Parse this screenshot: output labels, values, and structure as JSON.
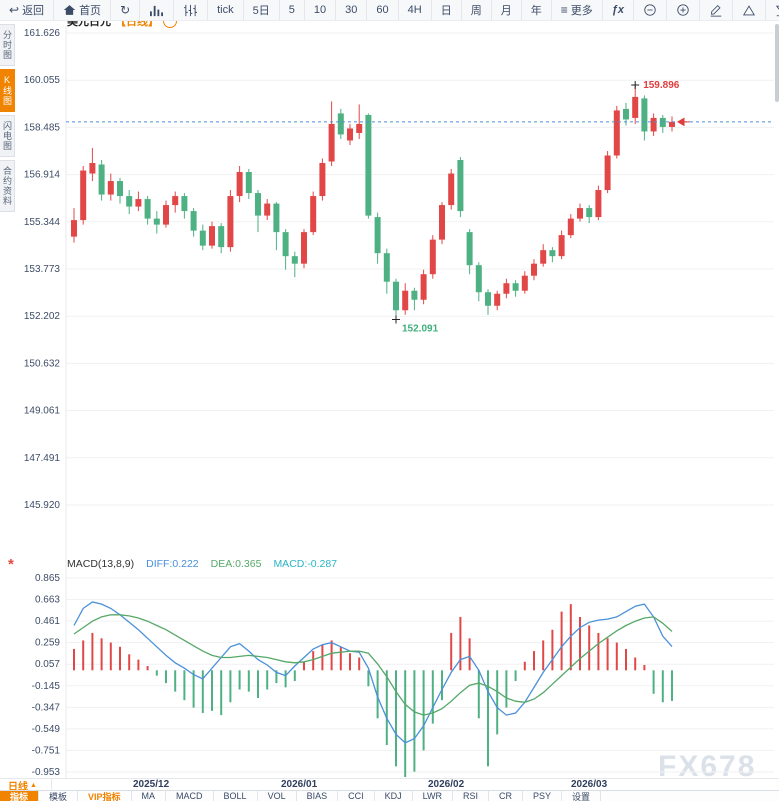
{
  "window": {
    "watermark": "FX678"
  },
  "colors": {
    "up": "#e14747",
    "down": "#4eb183",
    "accent_orange": "#f08300",
    "diff_line": "#4a90d9",
    "dea_line": "#55a868",
    "macd_value": "#29b6c5",
    "dashed_price_line": "#4f90d8",
    "grid": "#f0f1f3",
    "axis_text": "#3d4c66",
    "high_label": "#e03c3c",
    "low_label": "#3faf7c"
  },
  "toolbar": {
    "items": [
      {
        "name": "back",
        "label": "返回",
        "glyph": "↩"
      },
      {
        "name": "home",
        "label": "首页",
        "icon": "house"
      },
      {
        "name": "refresh",
        "label": "",
        "glyph": "↻"
      },
      {
        "name": "chart-style",
        "label": "",
        "icon": "bars"
      },
      {
        "name": "indicator-style",
        "label": "",
        "icon": "candles"
      },
      {
        "name": "tick",
        "label": "tick"
      },
      {
        "name": "period-5d",
        "label": "5日"
      },
      {
        "name": "period-5",
        "label": "5"
      },
      {
        "name": "period-10",
        "label": "10"
      },
      {
        "name": "period-30",
        "label": "30"
      },
      {
        "name": "period-60",
        "label": "60"
      },
      {
        "name": "period-4h",
        "label": "4H"
      },
      {
        "name": "period-day",
        "label": "日"
      },
      {
        "name": "period-week",
        "label": "周"
      },
      {
        "name": "period-month",
        "label": "月"
      },
      {
        "name": "period-year",
        "label": "年"
      },
      {
        "name": "more",
        "label": "更多",
        "glyph": "≡"
      },
      {
        "name": "fx",
        "label": "ƒx"
      },
      {
        "name": "zoom-out",
        "label": "",
        "icon": "minus-circle"
      },
      {
        "name": "zoom-in",
        "label": "",
        "icon": "plus-circle"
      },
      {
        "name": "draw",
        "label": "",
        "icon": "pencil"
      },
      {
        "name": "overlay-up",
        "label": "",
        "icon": "triangle-up"
      },
      {
        "name": "overlay-down",
        "label": "",
        "icon": "triangle-down"
      }
    ]
  },
  "sidebar": {
    "items": [
      {
        "label": "分时图",
        "active": false
      },
      {
        "label": "K线图",
        "active": true
      },
      {
        "label": "闪电图",
        "active": false
      },
      {
        "label": "合约资料",
        "active": false
      }
    ]
  },
  "chart_header": {
    "symbol": "美元日元",
    "period_tag": "【日线】",
    "collapse_glyph": "−"
  },
  "macd_header": {
    "name": "MACD(13,8,9)",
    "diff_label": "DIFF:0.222",
    "dea_label": "DEA:0.365",
    "macd_label": "MACD:-0.287",
    "star_glyph": "*"
  },
  "bottom": {
    "period_label": "日线",
    "period_arrow": "▲",
    "tabs": [
      {
        "label": "指标",
        "active": true
      },
      {
        "label": "模板"
      },
      {
        "label": "VIP指标",
        "vip": true
      },
      {
        "label": "MA"
      },
      {
        "label": "MACD"
      },
      {
        "label": "BOLL"
      },
      {
        "label": "VOL"
      },
      {
        "label": "BIAS"
      },
      {
        "label": "CCI"
      },
      {
        "label": "KDJ"
      },
      {
        "label": "LWR"
      },
      {
        "label": "RSI"
      },
      {
        "label": "CR"
      },
      {
        "label": "PSY"
      },
      {
        "label": "设置"
      }
    ]
  },
  "chart_data": {
    "type": "candlestick+macd",
    "title": "美元日元 日线 (USD/JPY daily)",
    "price_axis": {
      "labels": [
        "161.626",
        "160.055",
        "158.485",
        "156.914",
        "155.344",
        "153.773",
        "152.202",
        "150.632",
        "149.061",
        "147.491",
        "145.920"
      ],
      "top_value": 161.626,
      "bottom_value": 145.92
    },
    "x_axis_labels": [
      "2025/12",
      "2026/01",
      "2026/02",
      "2026/03"
    ],
    "high_marker": {
      "value": 159.896,
      "label": "159.896",
      "candle_index": 61
    },
    "low_marker": {
      "value": 152.091,
      "label": "152.091",
      "candle_index": 35
    },
    "reference_line_price": 158.67,
    "candles_ohlc": [
      [
        154.85,
        155.8,
        154.65,
        155.4
      ],
      [
        155.4,
        157.2,
        155.25,
        157.05
      ],
      [
        156.95,
        157.8,
        156.7,
        157.3
      ],
      [
        157.25,
        157.4,
        156.05,
        156.25
      ],
      [
        156.25,
        156.95,
        156.05,
        156.7
      ],
      [
        156.7,
        156.8,
        155.95,
        156.2
      ],
      [
        156.2,
        156.4,
        155.6,
        155.85
      ],
      [
        155.85,
        156.35,
        155.7,
        156.1
      ],
      [
        156.1,
        156.2,
        155.25,
        155.45
      ],
      [
        155.45,
        155.7,
        154.95,
        155.25
      ],
      [
        155.25,
        156.05,
        155.15,
        155.9
      ],
      [
        155.9,
        156.35,
        155.65,
        156.2
      ],
      [
        156.2,
        156.3,
        155.45,
        155.7
      ],
      [
        155.7,
        155.8,
        154.85,
        155.05
      ],
      [
        155.05,
        155.25,
        154.4,
        154.55
      ],
      [
        154.55,
        155.35,
        154.45,
        155.2
      ],
      [
        155.2,
        155.3,
        154.3,
        154.5
      ],
      [
        154.5,
        156.4,
        154.35,
        156.2
      ],
      [
        156.2,
        157.2,
        156.0,
        157.0
      ],
      [
        157.0,
        157.1,
        156.1,
        156.3
      ],
      [
        156.3,
        156.4,
        155.0,
        155.55
      ],
      [
        155.55,
        156.1,
        155.4,
        155.95
      ],
      [
        155.95,
        156.0,
        154.4,
        155.0
      ],
      [
        155.0,
        155.1,
        153.75,
        154.2
      ],
      [
        154.2,
        154.35,
        153.5,
        153.95
      ],
      [
        153.95,
        155.1,
        153.8,
        155.0
      ],
      [
        155.0,
        156.35,
        154.9,
        156.2
      ],
      [
        156.2,
        157.45,
        156.05,
        157.3
      ],
      [
        157.35,
        159.35,
        157.2,
        158.6
      ],
      [
        158.95,
        159.1,
        158.1,
        158.25
      ],
      [
        158.05,
        158.6,
        157.9,
        158.45
      ],
      [
        158.3,
        159.25,
        158.1,
        158.6
      ],
      [
        158.9,
        158.95,
        155.45,
        155.55
      ],
      [
        155.5,
        155.65,
        153.95,
        154.3
      ],
      [
        154.3,
        154.45,
        152.95,
        153.35
      ],
      [
        153.35,
        153.45,
        152.091,
        152.4
      ],
      [
        152.4,
        153.3,
        152.25,
        153.05
      ],
      [
        153.05,
        153.15,
        152.4,
        152.75
      ],
      [
        152.75,
        153.75,
        152.6,
        153.6
      ],
      [
        153.6,
        154.9,
        153.45,
        154.75
      ],
      [
        154.75,
        156.0,
        154.6,
        155.9
      ],
      [
        155.9,
        157.1,
        155.75,
        156.95
      ],
      [
        157.4,
        157.5,
        155.5,
        155.7
      ],
      [
        155.0,
        155.1,
        153.6,
        153.9
      ],
      [
        153.9,
        154.0,
        152.7,
        153.0
      ],
      [
        153.0,
        153.1,
        152.25,
        152.55
      ],
      [
        152.55,
        153.05,
        152.4,
        152.95
      ],
      [
        152.95,
        153.45,
        152.8,
        153.3
      ],
      [
        153.3,
        153.4,
        152.85,
        153.05
      ],
      [
        153.05,
        153.7,
        152.95,
        153.55
      ],
      [
        153.55,
        154.1,
        153.4,
        153.95
      ],
      [
        153.95,
        154.6,
        153.85,
        154.4
      ],
      [
        154.4,
        154.5,
        154.0,
        154.2
      ],
      [
        154.2,
        155.05,
        154.1,
        154.9
      ],
      [
        154.9,
        155.6,
        154.8,
        155.45
      ],
      [
        155.45,
        155.95,
        155.35,
        155.8
      ],
      [
        155.8,
        155.9,
        155.3,
        155.5
      ],
      [
        155.5,
        156.55,
        155.4,
        156.4
      ],
      [
        156.4,
        157.7,
        156.3,
        157.55
      ],
      [
        157.55,
        159.2,
        157.45,
        159.05
      ],
      [
        159.1,
        159.3,
        158.55,
        158.75
      ],
      [
        158.8,
        159.896,
        158.6,
        159.5
      ],
      [
        159.45,
        159.55,
        158.05,
        158.35
      ],
      [
        158.35,
        158.95,
        158.2,
        158.8
      ],
      [
        158.8,
        158.9,
        158.3,
        158.5
      ],
      [
        158.5,
        158.85,
        158.35,
        158.67
      ]
    ],
    "macd": {
      "params": "(13,8,9)",
      "diff_current": 0.222,
      "dea_current": 0.365,
      "macd_current": -0.287,
      "axis_labels": [
        "0.865",
        "0.663",
        "0.461",
        "0.259",
        "0.057",
        "-0.145",
        "-0.347",
        "-0.549",
        "-0.751",
        "-0.953"
      ],
      "diff": [
        0.42,
        0.58,
        0.64,
        0.62,
        0.58,
        0.52,
        0.45,
        0.38,
        0.3,
        0.22,
        0.14,
        0.07,
        0.02,
        -0.04,
        -0.08,
        0.02,
        0.12,
        0.22,
        0.25,
        0.18,
        0.1,
        0.05,
        -0.02,
        -0.05,
        0.04,
        0.12,
        0.2,
        0.24,
        0.26,
        0.22,
        0.18,
        0.17,
        0.02,
        -0.25,
        -0.45,
        -0.6,
        -0.68,
        -0.64,
        -0.52,
        -0.35,
        -0.18,
        -0.02,
        0.1,
        0.13,
        0.0,
        -0.2,
        -0.35,
        -0.42,
        -0.4,
        -0.3,
        -0.16,
        -0.02,
        0.1,
        0.22,
        0.32,
        0.4,
        0.45,
        0.47,
        0.48,
        0.5,
        0.55,
        0.6,
        0.62,
        0.5,
        0.32,
        0.222
      ],
      "dea": [
        0.34,
        0.4,
        0.46,
        0.5,
        0.52,
        0.52,
        0.51,
        0.49,
        0.46,
        0.42,
        0.38,
        0.33,
        0.28,
        0.23,
        0.18,
        0.14,
        0.12,
        0.12,
        0.13,
        0.14,
        0.13,
        0.12,
        0.1,
        0.08,
        0.07,
        0.08,
        0.1,
        0.13,
        0.16,
        0.17,
        0.18,
        0.18,
        0.16,
        0.06,
        -0.06,
        -0.2,
        -0.32,
        -0.39,
        -0.42,
        -0.4,
        -0.36,
        -0.29,
        -0.21,
        -0.14,
        -0.12,
        -0.15,
        -0.2,
        -0.26,
        -0.29,
        -0.3,
        -0.27,
        -0.21,
        -0.13,
        -0.05,
        0.03,
        0.11,
        0.18,
        0.25,
        0.31,
        0.37,
        0.42,
        0.46,
        0.49,
        0.5,
        0.44,
        0.365
      ],
      "histogram": [
        0.2,
        0.28,
        0.35,
        0.3,
        0.26,
        0.22,
        0.15,
        0.1,
        0.04,
        -0.05,
        -0.12,
        -0.2,
        -0.28,
        -0.35,
        -0.4,
        -0.38,
        -0.42,
        -0.3,
        -0.18,
        -0.2,
        -0.26,
        -0.18,
        -0.12,
        -0.16,
        -0.1,
        0.08,
        0.18,
        0.24,
        0.28,
        0.22,
        0.16,
        0.12,
        -0.15,
        -0.45,
        -0.7,
        -0.9,
        -1.0,
        -0.95,
        -0.75,
        -0.5,
        -0.28,
        0.35,
        0.5,
        0.3,
        -0.45,
        -0.9,
        -0.6,
        -0.35,
        -0.1,
        0.08,
        0.18,
        0.28,
        0.38,
        0.55,
        0.62,
        0.5,
        0.42,
        0.35,
        0.3,
        0.26,
        0.2,
        0.12,
        0.05,
        -0.22,
        -0.3,
        -0.287
      ]
    }
  }
}
